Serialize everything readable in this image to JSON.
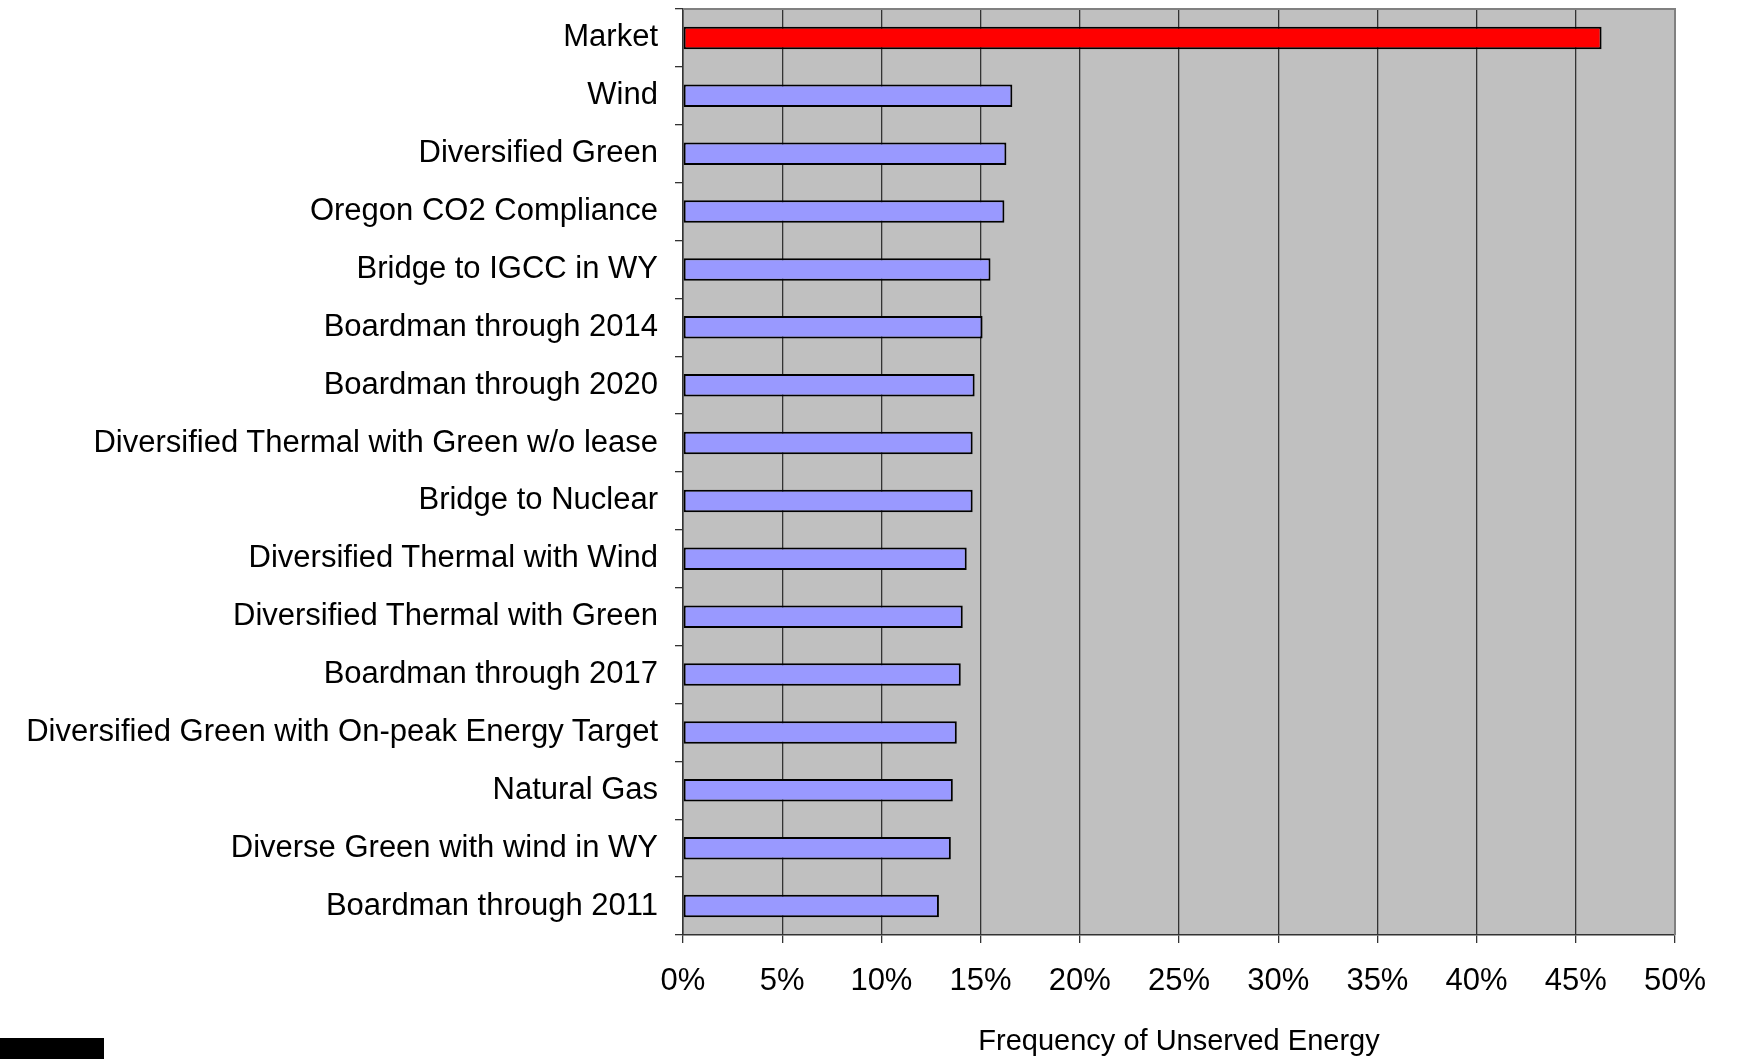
{
  "chart_data": {
    "type": "bar",
    "orientation": "horizontal",
    "xlabel": "Frequency of Unserved Energy",
    "categories": [
      "Market",
      "Wind",
      "Diversified Green",
      "Oregon CO2 Compliance",
      "Bridge to IGCC in WY",
      "Boardman through 2014",
      "Boardman through 2020",
      "Diversified Thermal with Green w/o lease",
      "Bridge to Nuclear",
      "Diversified Thermal with Wind",
      "Diversified Thermal with Green",
      "Boardman through 2017",
      "Diversified Green with On-peak Energy Target",
      "Natural Gas",
      "Diverse Green with wind in WY",
      "Boardman through 2011"
    ],
    "values": [
      46.3,
      16.6,
      16.3,
      16.2,
      15.5,
      15.1,
      14.7,
      14.6,
      14.6,
      14.3,
      14.1,
      14.0,
      13.8,
      13.6,
      13.5,
      12.9
    ],
    "colors": [
      "#ff0000",
      "#9999ff",
      "#9999ff",
      "#9999ff",
      "#9999ff",
      "#9999ff",
      "#9999ff",
      "#9999ff",
      "#9999ff",
      "#9999ff",
      "#9999ff",
      "#9999ff",
      "#9999ff",
      "#9999ff",
      "#9999ff",
      "#9999ff"
    ],
    "xlim": [
      0,
      50
    ],
    "xticks": [
      {
        "value": 0,
        "label": "0%"
      },
      {
        "value": 5,
        "label": "5%"
      },
      {
        "value": 10,
        "label": "10%"
      },
      {
        "value": 15,
        "label": "15%"
      },
      {
        "value": 20,
        "label": "20%"
      },
      {
        "value": 25,
        "label": "25%"
      },
      {
        "value": 30,
        "label": "30%"
      },
      {
        "value": 35,
        "label": "35%"
      },
      {
        "value": 40,
        "label": "40%"
      },
      {
        "value": 45,
        "label": "45%"
      },
      {
        "value": 50,
        "label": "50%"
      }
    ],
    "grid": "x"
  }
}
